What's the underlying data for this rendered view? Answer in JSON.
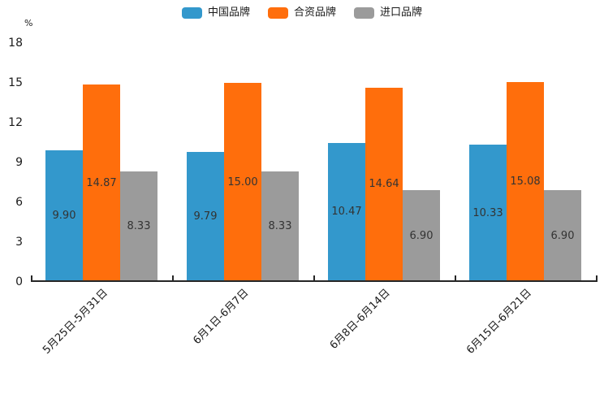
{
  "chart_data": {
    "type": "bar",
    "title": "",
    "ylabel": "%",
    "categories": [
      "5月25日-5月31日",
      "6月1日-6月7日",
      "6月8日-6月14日",
      "6月15日-6月21日"
    ],
    "series": [
      {
        "name": "中国品牌",
        "color": "#3398CC",
        "values": [
          9.9,
          9.79,
          10.47,
          10.33
        ]
      },
      {
        "name": "合资品牌",
        "color": "#FF6E0C",
        "values": [
          14.87,
          15.0,
          14.64,
          15.08
        ]
      },
      {
        "name": "进口品牌",
        "color": "#9B9B9B",
        "values": [
          8.33,
          8.33,
          6.9,
          6.9
        ]
      }
    ],
    "ylim": [
      0,
      18
    ],
    "yticks": [
      0,
      3,
      6,
      9,
      12,
      15,
      18
    ],
    "grid": false,
    "legend_position": "top-center",
    "value_labels": true,
    "value_label_decimals": 2,
    "xlabel_rotation_deg": 45
  },
  "colors": {
    "axis": "#262626",
    "tick_text": "#1a1a1a",
    "value_label_text": "#333333"
  }
}
